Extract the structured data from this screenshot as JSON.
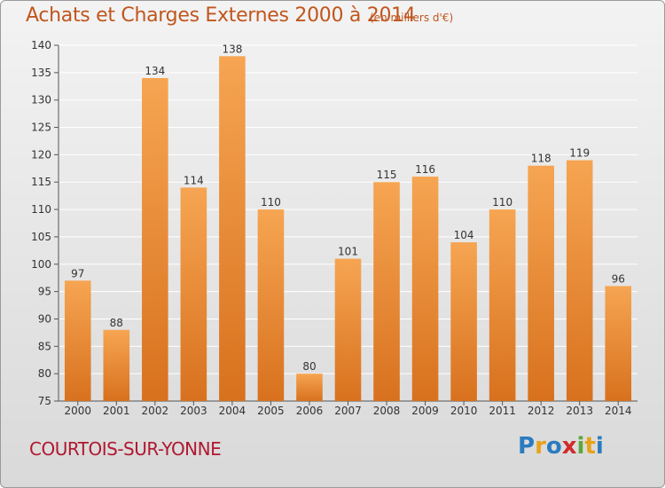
{
  "header": {
    "title": "Achats et Charges Externes 2000 à 2014",
    "subtitle": "(en milliers d'€)"
  },
  "footer": {
    "place": "COURTOIS-SUR-YONNE",
    "logo": [
      "P",
      "r",
      "o",
      "x",
      "i",
      "t",
      "i"
    ],
    "logo_colors": [
      "#2b7bbf",
      "#e8a21a",
      "#2b7bbf",
      "#d22a2a",
      "#5aa83c",
      "#e8a21a",
      "#2b7bbf"
    ]
  },
  "chart_data": {
    "type": "bar",
    "title": "Achats et Charges Externes 2000 à 2014",
    "subtitle": "(en milliers d'€)",
    "categories": [
      "2000",
      "2001",
      "2002",
      "2003",
      "2004",
      "2005",
      "2006",
      "2007",
      "2008",
      "2009",
      "2010",
      "2011",
      "2012",
      "2013",
      "2014"
    ],
    "values": [
      97,
      88,
      134,
      114,
      138,
      110,
      80,
      101,
      115,
      116,
      104,
      110,
      118,
      119,
      96
    ],
    "ylim": [
      75,
      140
    ],
    "yticks": [
      75,
      80,
      85,
      90,
      95,
      100,
      105,
      110,
      115,
      120,
      125,
      130,
      135,
      140
    ],
    "grid": true,
    "bar_color_top": "#f6a552",
    "bar_color_bottom": "#d8711e"
  }
}
